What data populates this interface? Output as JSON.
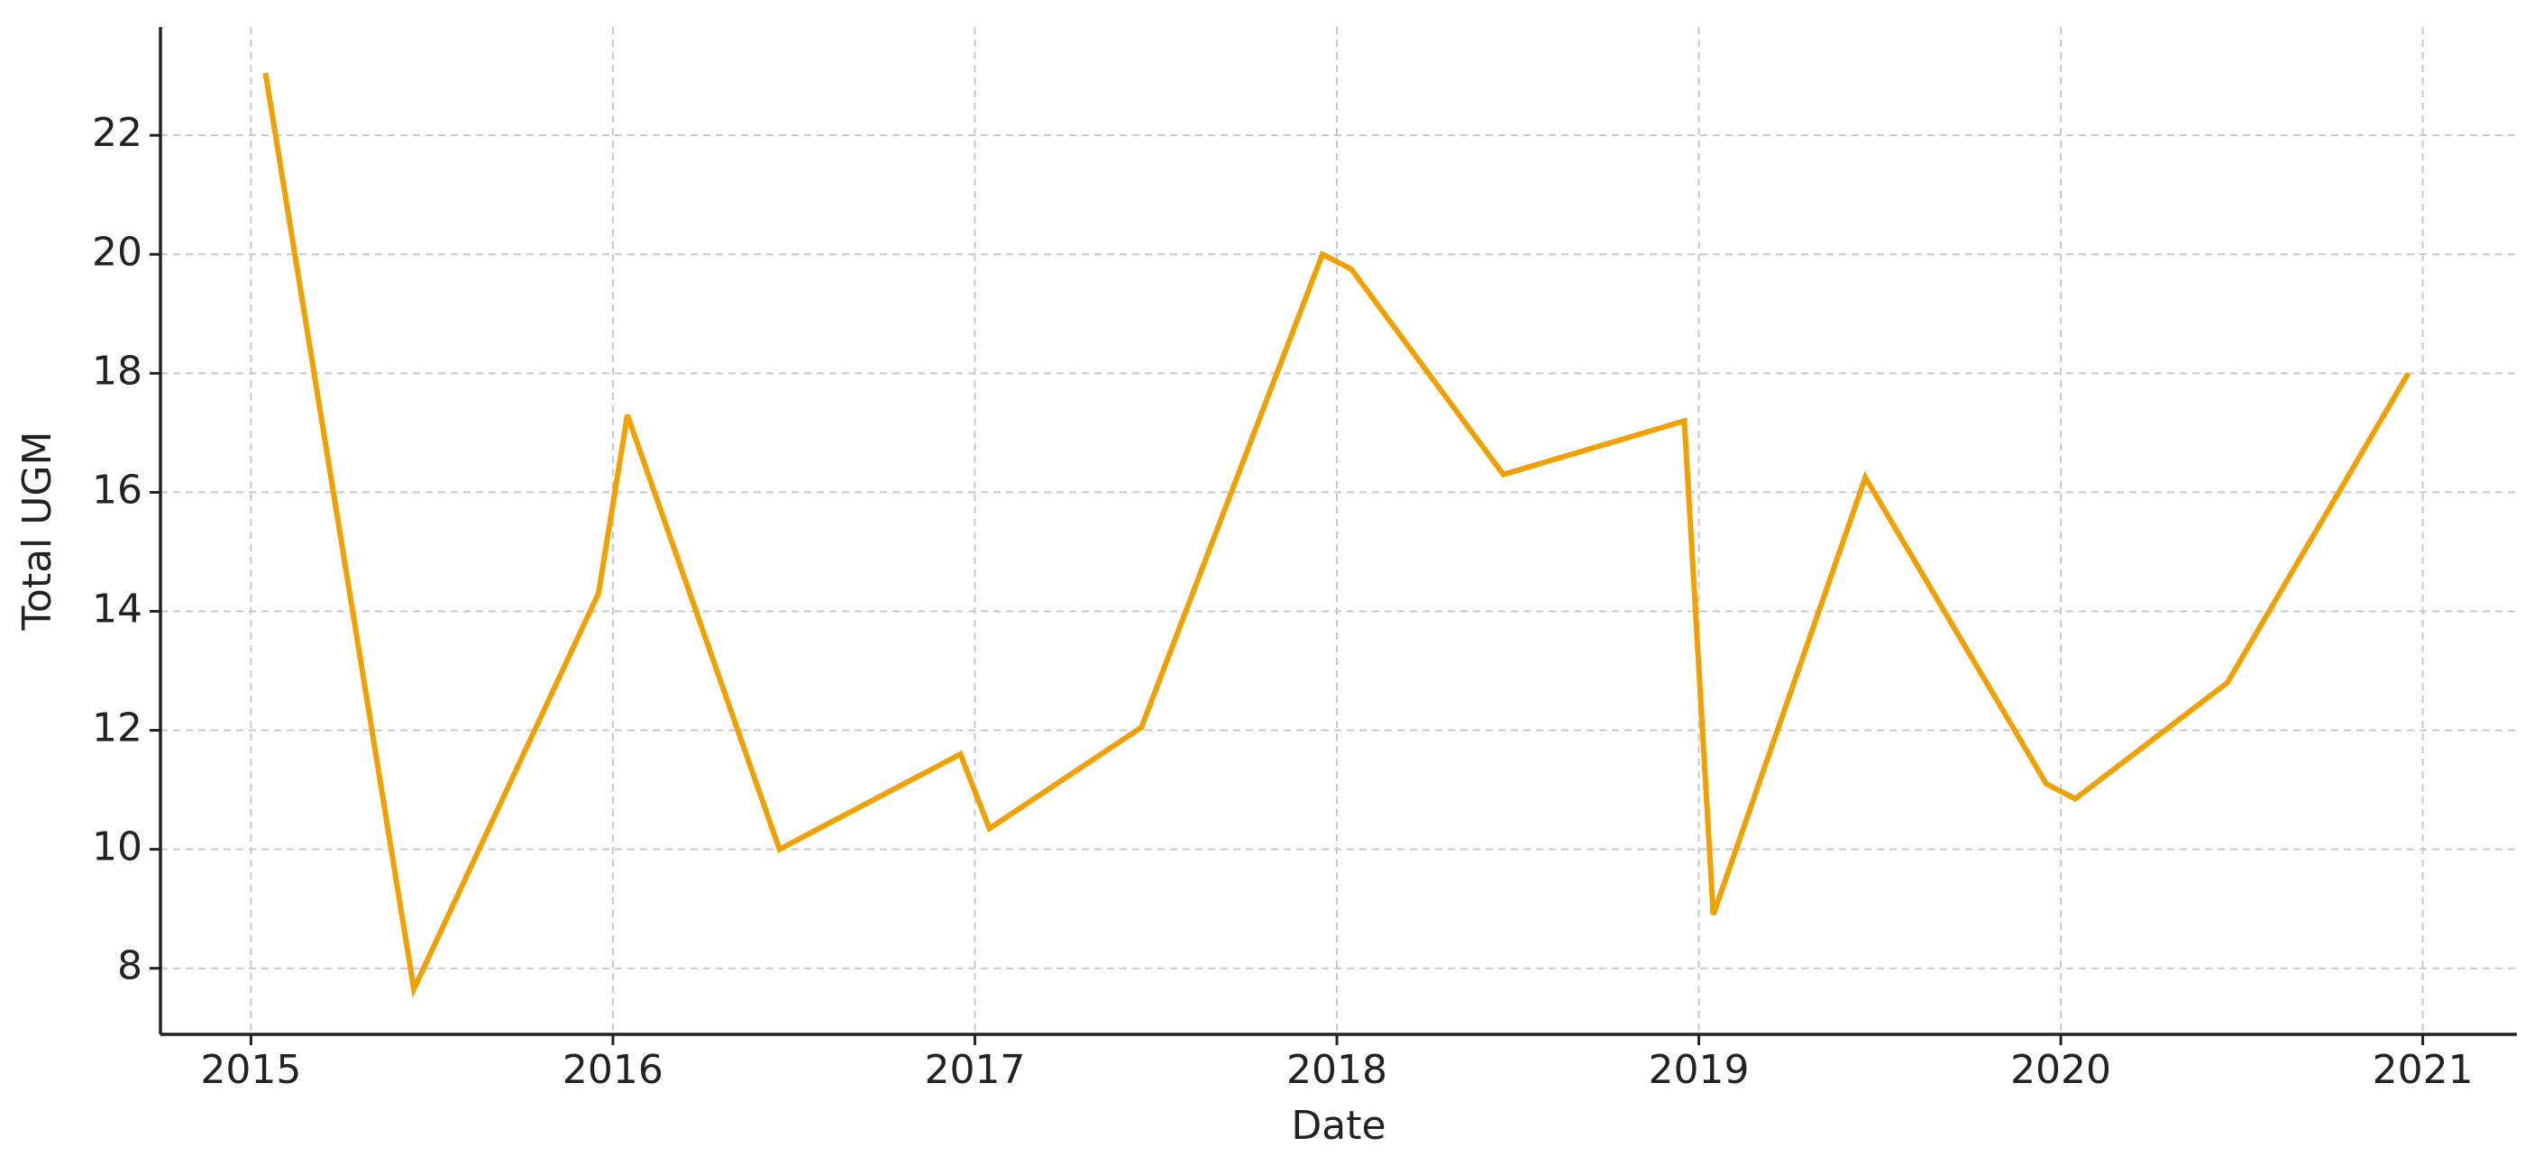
{
  "chart_data": {
    "type": "line",
    "x_label": "Date",
    "y_label": "Total UGM",
    "x": [
      2015.04,
      2015.45,
      2015.96,
      2016.04,
      2016.46,
      2016.96,
      2017.04,
      2017.46,
      2017.96,
      2018.04,
      2018.46,
      2018.96,
      2019.04,
      2019.46,
      2019.96,
      2020.04,
      2020.46,
      2020.96
    ],
    "series": [
      {
        "name": "Total UGM",
        "color": "#f0a000",
        "values": [
          23.05,
          7.65,
          14.3,
          17.3,
          10.0,
          11.6,
          10.35,
          12.05,
          20.0,
          19.75,
          16.3,
          17.2,
          8.9,
          16.25,
          11.1,
          10.85,
          12.8,
          18.0
        ]
      }
    ],
    "xlim": [
      2014.75,
      2021.26
    ],
    "xticks": [
      2015,
      2016,
      2017,
      2018,
      2019,
      2020,
      2021
    ],
    "ylim": [
      6.89,
      23.82
    ],
    "yticks": [
      8,
      10,
      12,
      14,
      16,
      18,
      20,
      22
    ],
    "grid": true
  }
}
